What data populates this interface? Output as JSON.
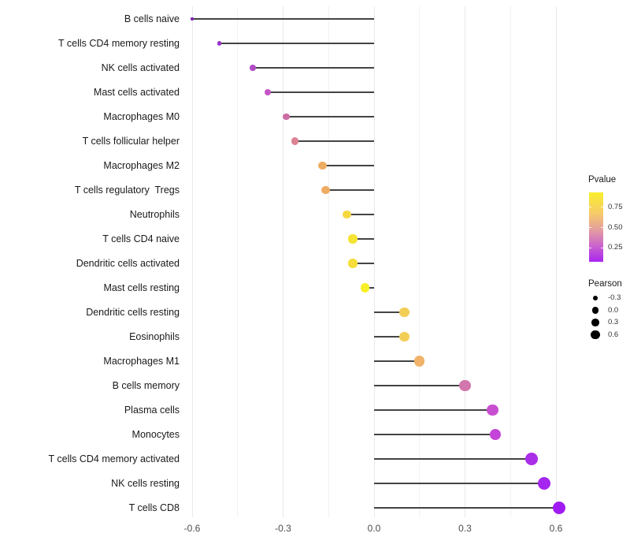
{
  "chart_data": {
    "type": "lollipop",
    "orientation": "horizontal",
    "title": "",
    "xlabel": "",
    "ylabel": "",
    "x_ticks": [
      {
        "label": "-0.6",
        "value": -0.6
      },
      {
        "label": "-0.3",
        "value": -0.3
      },
      {
        "label": "0.0",
        "value": 0.0
      },
      {
        "label": "0.3",
        "value": 0.3
      },
      {
        "label": "0.6",
        "value": 0.6
      }
    ],
    "x_minor_gridlines": [
      -0.45,
      -0.15,
      0.15,
      0.45
    ],
    "xlim": [
      -0.62,
      0.66
    ],
    "grid": true,
    "rows": [
      {
        "label": "B cells naive",
        "pearson": -0.6,
        "color": "#7d22b4"
      },
      {
        "label": "T cells CD4 memory resting",
        "pearson": -0.51,
        "color": "#9b33cc"
      },
      {
        "label": "NK cells activated",
        "pearson": -0.4,
        "color": "#b14cc4"
      },
      {
        "label": "Mast cells activated",
        "pearson": -0.35,
        "color": "#c355c6"
      },
      {
        "label": "Macrophages M0",
        "pearson": -0.29,
        "color": "#cc6ea4"
      },
      {
        "label": "T cells follicular helper",
        "pearson": -0.26,
        "color": "#db8394"
      },
      {
        "label": "Macrophages M2",
        "pearson": -0.17,
        "color": "#eeac62"
      },
      {
        "label": "T cells regulatory  Tregs",
        "pearson": -0.16,
        "color": "#eeac62"
      },
      {
        "label": "Neutrophils",
        "pearson": -0.09,
        "color": "#f4d83e"
      },
      {
        "label": "T cells CD4 naive",
        "pearson": -0.07,
        "color": "#f6e432"
      },
      {
        "label": "Dendritic cells activated",
        "pearson": -0.07,
        "color": "#f5de3a"
      },
      {
        "label": "Mast cells resting",
        "pearson": -0.03,
        "color": "#f8ef28"
      },
      {
        "label": "Dendritic cells resting",
        "pearson": 0.1,
        "color": "#f2ce56"
      },
      {
        "label": "Eosinophils",
        "pearson": 0.1,
        "color": "#f2ce56"
      },
      {
        "label": "Macrophages M1",
        "pearson": 0.15,
        "color": "#f0b368"
      },
      {
        "label": "B cells memory",
        "pearson": 0.3,
        "color": "#d276ae"
      },
      {
        "label": "Plasma cells",
        "pearson": 0.39,
        "color": "#c84fd0"
      },
      {
        "label": "Monocytes",
        "pearson": 0.4,
        "color": "#c443d8"
      },
      {
        "label": "T cells CD4 memory activated",
        "pearson": 0.52,
        "color": "#aa2ee8"
      },
      {
        "label": "NK cells resting",
        "pearson": 0.56,
        "color": "#a526ee"
      },
      {
        "label": "T cells CD8",
        "pearson": 0.61,
        "color": "#a01bf2"
      }
    ],
    "legend": {
      "pvalue": {
        "title": "Pvalue",
        "tick_labels": [
          "0.75",
          "0.50",
          "0.25"
        ],
        "tick_values": [
          0.75,
          0.5,
          0.25
        ],
        "domain": [
          0.93,
          0.08
        ],
        "gradient_stops": [
          {
            "color": "#f9ee2c",
            "pos": 0.0
          },
          {
            "color": "#f6cb69",
            "pos": 0.3
          },
          {
            "color": "#e39ba2",
            "pos": 0.55
          },
          {
            "color": "#c961ce",
            "pos": 0.78
          },
          {
            "color": "#a826f0",
            "pos": 1.0
          }
        ]
      },
      "pearson": {
        "title": "Pearson",
        "items": [
          {
            "label": "-0.3",
            "value": -0.3
          },
          {
            "label": "0.0",
            "value": 0.0
          },
          {
            "label": "0.3",
            "value": 0.3
          },
          {
            "label": "0.6",
            "value": 0.6
          }
        ],
        "dot_color": "#000000"
      }
    },
    "colors": {
      "background": "#ffffff",
      "stem": "#444444",
      "grid_major": "#e9e9e9",
      "grid_minor": "#f2f2f2",
      "axis_text": "#4d4d4d",
      "label_text": "#1a1a1a"
    }
  }
}
